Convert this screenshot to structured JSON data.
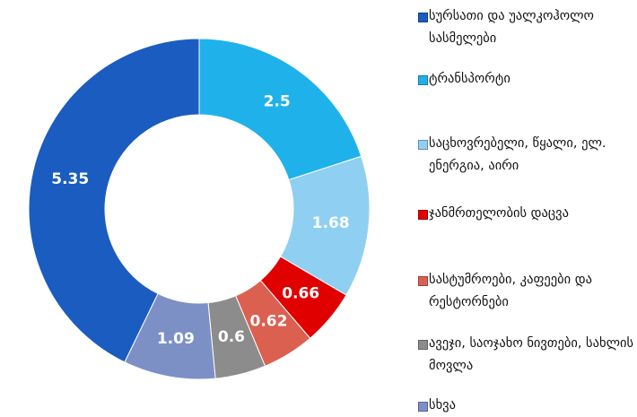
{
  "chart_data": {
    "type": "donut",
    "categories": [
      "სურსათი და უალკოჰოლო სასმელები",
      "ტრანსპორტი",
      "საცხოვრებელი, წყალი, ელ. ენერგია, აირი",
      "ჯანმრთელობის დაცვა",
      "სასტუმროები, კაფეები და რესტორნები",
      "ავეჯი, საოჯახო ნივთები, სახლის მოვლა",
      "სხვა"
    ],
    "values": [
      5.35,
      2.5,
      1.68,
      0.66,
      0.62,
      0.6,
      1.09
    ],
    "colors": [
      "#1a5cc0",
      "#1fb2ea",
      "#8fd0f2",
      "#e00000",
      "#db6050",
      "#8c8c8c",
      "#7d90c6"
    ],
    "legend": "right"
  }
}
